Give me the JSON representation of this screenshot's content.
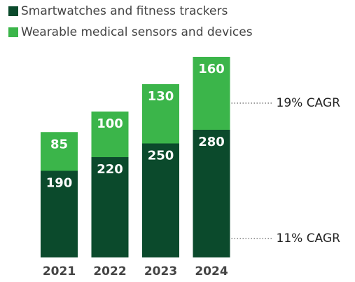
{
  "chart_data": {
    "type": "stacked-bar",
    "categories": [
      "2021",
      "2022",
      "2023",
      "2024"
    ],
    "series": [
      {
        "name": "Smartwatches and fitness trackers",
        "color": "#0b4a2c",
        "values": [
          190,
          220,
          250,
          280
        ]
      },
      {
        "name": "Wearable medical sensors and devices",
        "color": "#3bb54a",
        "values": [
          85,
          100,
          130,
          160
        ]
      }
    ],
    "annotations": [
      "19% CAGR",
      "11% CAGR"
    ]
  }
}
